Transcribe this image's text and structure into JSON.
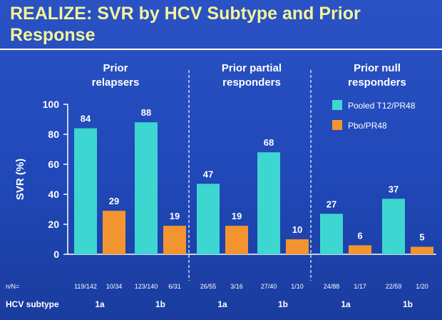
{
  "title": "REALIZE: SVR by HCV Subtype and Prior Response",
  "colors": {
    "t12": "#3ed6d0",
    "pbo": "#f29530",
    "background": "#2048b8",
    "title": "#f4f39a"
  },
  "chart_data": {
    "type": "bar",
    "ylabel": "SVR (%)",
    "ylim": [
      0,
      100
    ],
    "yticks": [
      0,
      20,
      40,
      60,
      80,
      100
    ],
    "groups": [
      {
        "label_lines": [
          "Prior",
          "relapsers"
        ]
      },
      {
        "label_lines": [
          "Prior partial",
          "responders"
        ]
      },
      {
        "label_lines": [
          "Prior null",
          "responders"
        ]
      }
    ],
    "categories": [
      "1a",
      "1b",
      "1a",
      "1b",
      "1a",
      "1b"
    ],
    "series": [
      {
        "name": "Pooled T12/PR48",
        "values": [
          84,
          88,
          47,
          68,
          27,
          37
        ],
        "nn": [
          "119/142",
          "123/140",
          "26/55",
          "27/40",
          "24/88",
          "22/59"
        ]
      },
      {
        "name": "Pbo/PR48",
        "values": [
          29,
          19,
          19,
          10,
          6,
          5
        ],
        "nn": [
          "10/34",
          "6/31",
          "3/16",
          "1/10",
          "1/17",
          "1/20"
        ]
      }
    ],
    "row_labels": {
      "nn": "n/N=",
      "subtype": "HCV subtype"
    }
  }
}
